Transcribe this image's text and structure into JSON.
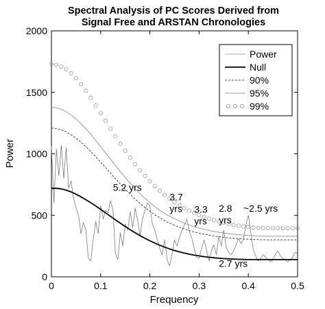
{
  "chart_data": {
    "type": "line",
    "title": [
      "Spectral Analysis of PC Scores Derived from",
      "Signal Free and ARSTAN Chronologies"
    ],
    "xlabel": "Frequency",
    "ylabel": "Power",
    "xlim": [
      0,
      0.5
    ],
    "ylim": [
      0,
      2000
    ],
    "x_ticks": [
      0,
      0.1,
      0.2,
      0.3,
      0.4,
      0.5
    ],
    "y_ticks": [
      0,
      500,
      1000,
      1500,
      2000
    ],
    "legend_position": "top-right",
    "grid": false,
    "series": [
      {
        "name": "Power",
        "style": "thin-solid-gray",
        "x": [
          0,
          0.005,
          0.01,
          0.015,
          0.02,
          0.025,
          0.03,
          0.035,
          0.04,
          0.045,
          0.05,
          0.055,
          0.06,
          0.065,
          0.07,
          0.075,
          0.08,
          0.085,
          0.09,
          0.095,
          0.1,
          0.105,
          0.11,
          0.115,
          0.12,
          0.125,
          0.13,
          0.135,
          0.14,
          0.145,
          0.15,
          0.155,
          0.16,
          0.165,
          0.17,
          0.175,
          0.18,
          0.185,
          0.19,
          0.195,
          0.2,
          0.205,
          0.21,
          0.215,
          0.22,
          0.225,
          0.23,
          0.235,
          0.24,
          0.245,
          0.25,
          0.255,
          0.26,
          0.265,
          0.27,
          0.275,
          0.28,
          0.285,
          0.29,
          0.295,
          0.3,
          0.305,
          0.31,
          0.315,
          0.32,
          0.325,
          0.33,
          0.335,
          0.34,
          0.345,
          0.35,
          0.355,
          0.36,
          0.365,
          0.37,
          0.375,
          0.38,
          0.385,
          0.39,
          0.395,
          0.4,
          0.405,
          0.41,
          0.415,
          0.42,
          0.425,
          0.43,
          0.435,
          0.44,
          0.445,
          0.45,
          0.455,
          0.46,
          0.465,
          0.47,
          0.475,
          0.48,
          0.485,
          0.49,
          0.495,
          0.5
        ],
        "values": [
          1060,
          600,
          1040,
          820,
          1070,
          800,
          1050,
          720,
          780,
          640,
          560,
          500,
          350,
          440,
          380,
          150,
          130,
          300,
          450,
          350,
          580,
          470,
          540,
          520,
          620,
          540,
          190,
          140,
          360,
          250,
          430,
          380,
          530,
          400,
          560,
          460,
          330,
          470,
          540,
          600,
          580,
          430,
          380,
          300,
          230,
          180,
          300,
          140,
          90,
          180,
          300,
          250,
          320,
          380,
          420,
          470,
          370,
          320,
          230,
          160,
          150,
          230,
          300,
          220,
          130,
          210,
          260,
          180,
          330,
          250,
          380,
          240,
          200,
          180,
          210,
          260,
          310,
          270,
          300,
          420,
          500,
          360,
          220,
          170,
          130,
          150,
          180,
          160,
          140,
          120,
          140,
          180,
          210,
          170,
          150,
          140,
          120,
          140,
          160,
          200,
          190
        ]
      },
      {
        "name": "Null",
        "style": "thick-solid-black",
        "x": [
          0,
          0.01,
          0.02,
          0.03,
          0.04,
          0.05,
          0.06,
          0.07,
          0.08,
          0.09,
          0.1,
          0.11,
          0.12,
          0.13,
          0.14,
          0.15,
          0.16,
          0.17,
          0.18,
          0.19,
          0.2,
          0.21,
          0.22,
          0.23,
          0.24,
          0.25,
          0.26,
          0.27,
          0.28,
          0.29,
          0.3,
          0.31,
          0.32,
          0.33,
          0.34,
          0.35,
          0.36,
          0.37,
          0.38,
          0.39,
          0.4,
          0.41,
          0.42,
          0.43,
          0.44,
          0.45,
          0.46,
          0.47,
          0.48,
          0.49,
          0.5
        ],
        "values": [
          720,
          720,
          715,
          705,
          690,
          672,
          650,
          627,
          602,
          576,
          548,
          520,
          492,
          463,
          436,
          409,
          383,
          358,
          335,
          313,
          293,
          274,
          257,
          241,
          227,
          214,
          203,
          193,
          184,
          176,
          170,
          164,
          159,
          155,
          151,
          148,
          146,
          144,
          142,
          141,
          140,
          140,
          140,
          140,
          140,
          140,
          140,
          140,
          140,
          140,
          140
        ]
      },
      {
        "name": "90%",
        "style": "dashed-gray",
        "x": [
          0,
          0.01,
          0.02,
          0.03,
          0.04,
          0.05,
          0.06,
          0.07,
          0.08,
          0.09,
          0.1,
          0.11,
          0.12,
          0.13,
          0.14,
          0.15,
          0.16,
          0.17,
          0.18,
          0.19,
          0.2,
          0.21,
          0.22,
          0.23,
          0.24,
          0.25,
          0.26,
          0.27,
          0.28,
          0.29,
          0.3,
          0.31,
          0.32,
          0.33,
          0.34,
          0.35,
          0.36,
          0.37,
          0.38,
          0.39,
          0.4,
          0.41,
          0.42,
          0.43,
          0.44,
          0.45,
          0.46,
          0.47,
          0.48,
          0.49,
          0.5
        ],
        "values": [
          1210,
          1205,
          1195,
          1178,
          1155,
          1127,
          1094,
          1058,
          1018,
          976,
          932,
          888,
          843,
          798,
          754,
          712,
          671,
          632,
          596,
          563,
          532,
          505,
          480,
          457,
          437,
          419,
          403,
          389,
          376,
          365,
          355,
          346,
          339,
          332,
          326,
          321,
          317,
          313,
          310,
          307,
          305,
          303,
          302,
          301,
          300,
          300,
          300,
          300,
          300,
          300,
          300
        ]
      },
      {
        "name": "95%",
        "style": "solid-gray",
        "x": [
          0,
          0.01,
          0.02,
          0.03,
          0.04,
          0.05,
          0.06,
          0.07,
          0.08,
          0.09,
          0.1,
          0.11,
          0.12,
          0.13,
          0.14,
          0.15,
          0.16,
          0.17,
          0.18,
          0.19,
          0.2,
          0.21,
          0.22,
          0.23,
          0.24,
          0.25,
          0.26,
          0.27,
          0.28,
          0.29,
          0.3,
          0.31,
          0.32,
          0.33,
          0.34,
          0.35,
          0.36,
          0.37,
          0.38,
          0.39,
          0.4,
          0.41,
          0.42,
          0.43,
          0.44,
          0.45,
          0.46,
          0.47,
          0.48,
          0.49,
          0.5
        ],
        "values": [
          1380,
          1374,
          1362,
          1342,
          1316,
          1284,
          1246,
          1204,
          1158,
          1109,
          1059,
          1008,
          956,
          905,
          855,
          807,
          761,
          717,
          676,
          638,
          603,
          571,
          542,
          516,
          493,
          472,
          453,
          436,
          421,
          408,
          396,
          386,
          377,
          369,
          362,
          356,
          351,
          346,
          342,
          339,
          336,
          334,
          332,
          331,
          330,
          330,
          330,
          330,
          330,
          330,
          330
        ]
      },
      {
        "name": "99%",
        "style": "circle-markers-gray",
        "x": [
          0,
          0.01,
          0.02,
          0.03,
          0.04,
          0.05,
          0.06,
          0.07,
          0.08,
          0.09,
          0.1,
          0.11,
          0.12,
          0.13,
          0.14,
          0.15,
          0.16,
          0.17,
          0.18,
          0.19,
          0.2,
          0.21,
          0.22,
          0.23,
          0.24,
          0.25,
          0.26,
          0.27,
          0.28,
          0.29,
          0.3,
          0.31,
          0.32,
          0.33,
          0.34,
          0.35,
          0.36,
          0.37,
          0.38,
          0.39,
          0.4,
          0.41,
          0.42,
          0.43,
          0.44,
          0.45,
          0.46,
          0.47,
          0.48,
          0.49,
          0.5
        ],
        "values": [
          1730,
          1724,
          1710,
          1687,
          1655,
          1614,
          1566,
          1513,
          1455,
          1394,
          1331,
          1268,
          1205,
          1143,
          1082,
          1024,
          969,
          916,
          866,
          820,
          777,
          737,
          700,
          666,
          635,
          607,
          582,
          559,
          538,
          519,
          502,
          487,
          473,
          461,
          450,
          440,
          431,
          423,
          416,
          410,
          405,
          401,
          398,
          396,
          395,
          395,
          395,
          395,
          395,
          395,
          395
        ]
      }
    ],
    "annotations": [
      {
        "lines": [
          "5.2 yrs"
        ],
        "x": 0.125,
        "y": 700
      },
      {
        "lines": [
          "3.7",
          "yrs"
        ],
        "x": 0.24,
        "y": 620
      },
      {
        "lines": [
          "3.3",
          "yrs"
        ],
        "x": 0.29,
        "y": 520
      },
      {
        "lines": [
          "2.8",
          "yrs"
        ],
        "x": 0.34,
        "y": 530
      },
      {
        "lines": [
          "~2.5 yrs"
        ],
        "x": 0.39,
        "y": 530
      },
      {
        "lines": [
          "2.7 yrs"
        ],
        "x": 0.34,
        "y": 80
      }
    ]
  }
}
